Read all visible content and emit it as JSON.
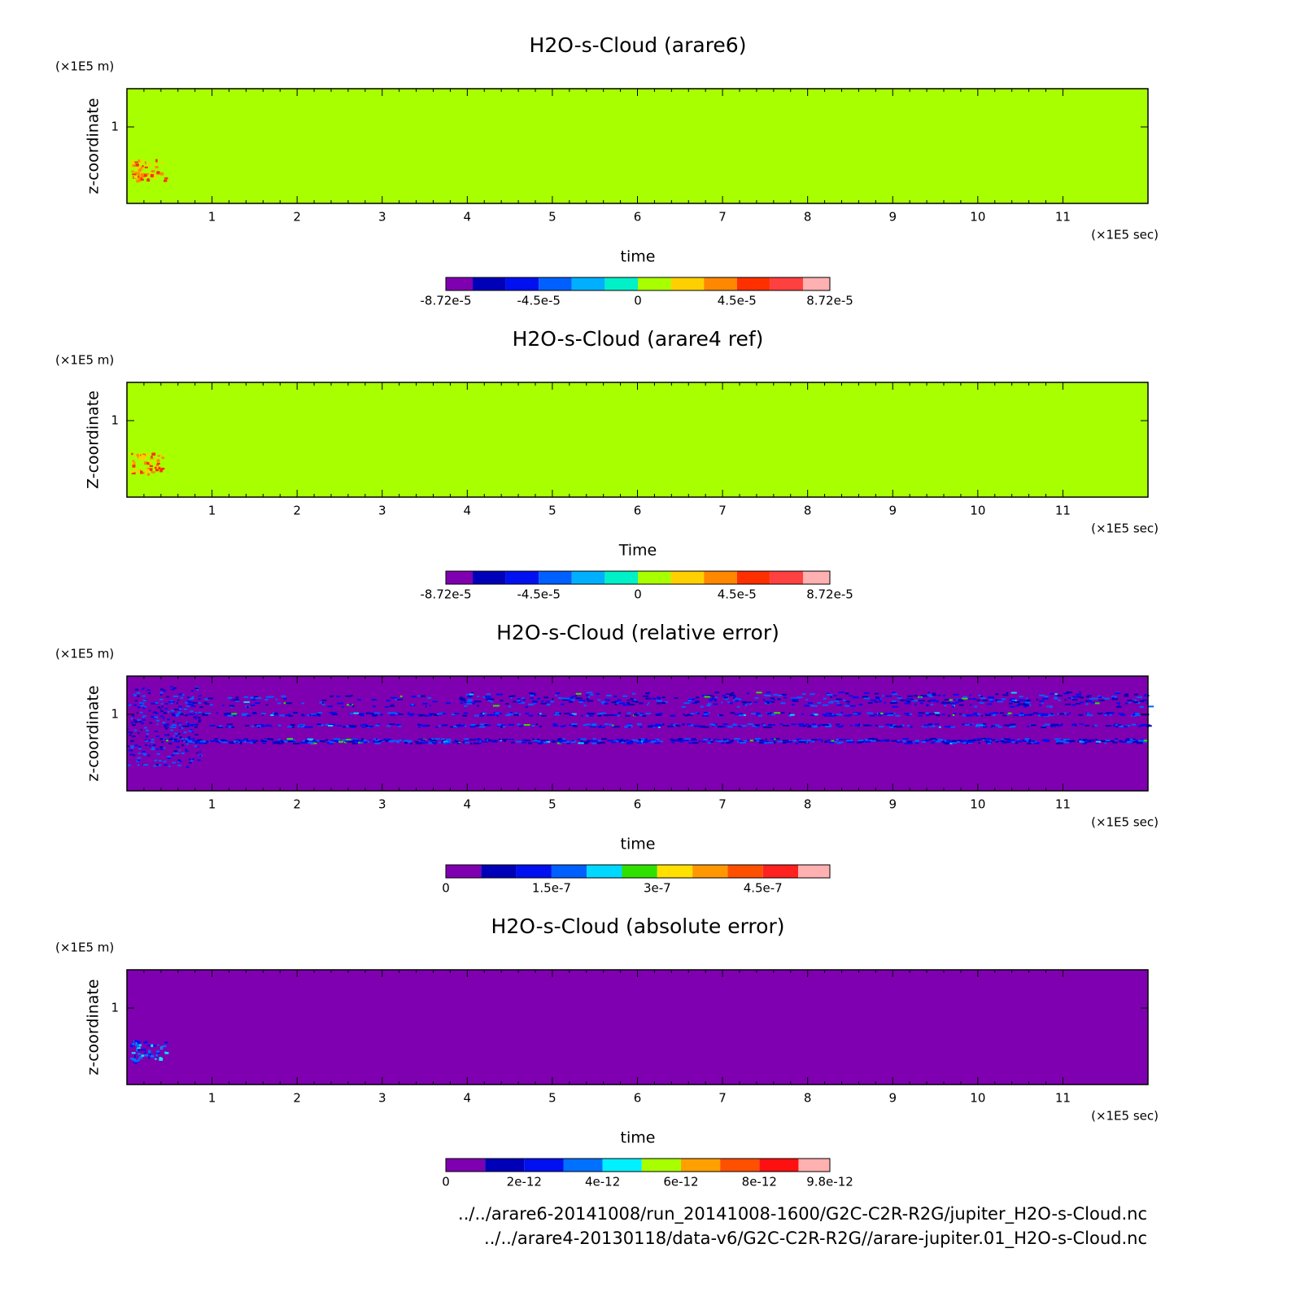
{
  "chart_data": [
    {
      "type": "heatmap",
      "title": "H2O-s-Cloud (arare6)",
      "xlabel": "time",
      "ylabel": "z-coordinate",
      "x_unit": "(×1E5 sec)",
      "y_unit": "(×1E5 m)",
      "xlim": [
        0,
        12
      ],
      "xticks": [
        1,
        2,
        3,
        4,
        5,
        6,
        7,
        8,
        9,
        10,
        11
      ],
      "ylim": [
        0,
        1.5
      ],
      "yticks": [
        1
      ],
      "field_color": "#a8ff00",
      "texture": "spot",
      "colorbar": {
        "lim": [
          -8.72e-05,
          8.72e-05
        ],
        "levels": [
          -7.5e-05,
          -6e-05,
          -4.5e-05,
          -3e-05,
          -1.5e-05,
          0,
          1.5e-05,
          3e-05,
          4.5e-05,
          6e-05,
          7.5e-05
        ],
        "colors": [
          "#7f00b0",
          "#0000b8",
          "#0010f0",
          "#0060ff",
          "#00b0ff",
          "#00f0c8",
          "#a8ff00",
          "#ffd000",
          "#ff8800",
          "#ff3000",
          "#ff4040",
          "#ffb0b0"
        ],
        "ticks": [
          {
            "value": -8.72e-05,
            "label": "-8.72e-5"
          },
          {
            "value": -4.5e-05,
            "label": "-4.5e-5"
          },
          0,
          {
            "value": 4.5e-05,
            "label": "4.5e-5"
          },
          {
            "value": 8.72e-05,
            "label": "8.72e-5"
          }
        ]
      }
    },
    {
      "type": "heatmap",
      "title": "H2O-s-Cloud (arare4 ref)",
      "xlabel": "Time",
      "ylabel": "Z-coordinate",
      "x_unit": "(×1E5 sec)",
      "y_unit": "(×1E5 m)",
      "xlim": [
        0,
        12
      ],
      "xticks": [
        1,
        2,
        3,
        4,
        5,
        6,
        7,
        8,
        9,
        10,
        11
      ],
      "ylim": [
        0,
        1.5
      ],
      "yticks": [
        1
      ],
      "field_color": "#a8ff00",
      "texture": "spot",
      "colorbar": {
        "lim": [
          -8.72e-05,
          8.72e-05
        ],
        "levels": [
          -7.5e-05,
          -6e-05,
          -4.5e-05,
          -3e-05,
          -1.5e-05,
          0,
          1.5e-05,
          3e-05,
          4.5e-05,
          6e-05,
          7.5e-05
        ],
        "colors": [
          "#7f00b0",
          "#0000b8",
          "#0010f0",
          "#0060ff",
          "#00b0ff",
          "#00f0c8",
          "#a8ff00",
          "#ffd000",
          "#ff8800",
          "#ff3000",
          "#ff4040",
          "#ffb0b0"
        ],
        "ticks": [
          {
            "value": -8.72e-05,
            "label": "-8.72e-5"
          },
          {
            "value": -4.5e-05,
            "label": "-4.5e-5"
          },
          0,
          {
            "value": 4.5e-05,
            "label": "4.5e-5"
          },
          {
            "value": 8.72e-05,
            "label": "8.72e-5"
          }
        ]
      }
    },
    {
      "type": "heatmap",
      "title": "H2O-s-Cloud (relative error)",
      "xlabel": "time",
      "ylabel": "z-coordinate",
      "x_unit": "(×1E5 sec)",
      "y_unit": "(×1E5 m)",
      "xlim": [
        0,
        12
      ],
      "xticks": [
        1,
        2,
        3,
        4,
        5,
        6,
        7,
        8,
        9,
        10,
        11
      ],
      "ylim": [
        0,
        1.5
      ],
      "yticks": [
        1
      ],
      "field_color": "#7f00b0",
      "texture": "streaks",
      "colorbar": {
        "lim": [
          0,
          5.45e-07
        ],
        "levels": [
          5e-08,
          1e-07,
          1.5e-07,
          2e-07,
          2.5e-07,
          3e-07,
          3.5e-07,
          4e-07,
          4.5e-07,
          5e-07
        ],
        "colors": [
          "#7f00b0",
          "#0000b8",
          "#0010f0",
          "#0060ff",
          "#00d8ff",
          "#30e000",
          "#ffe000",
          "#ff9800",
          "#ff5000",
          "#ff2020",
          "#ffb0b0"
        ],
        "ticks": [
          0,
          {
            "value": 1.5e-07,
            "label": "1.5e-7"
          },
          {
            "value": 3e-07,
            "label": "3e-7"
          },
          {
            "value": 4.5e-07,
            "label": "4.5e-7"
          }
        ]
      }
    },
    {
      "type": "heatmap",
      "title": "H2O-s-Cloud (absolute error)",
      "xlabel": "time",
      "ylabel": "z-coordinate",
      "x_unit": "(×1E5 sec)",
      "y_unit": "(×1E5 m)",
      "xlim": [
        0,
        12
      ],
      "xticks": [
        1,
        2,
        3,
        4,
        5,
        6,
        7,
        8,
        9,
        10,
        11
      ],
      "ylim": [
        0,
        1.5
      ],
      "yticks": [
        1
      ],
      "field_color": "#7f00b0",
      "texture": "spot",
      "colorbar": {
        "lim": [
          0,
          9.8e-12
        ],
        "levels": [
          1e-12,
          2e-12,
          3e-12,
          4e-12,
          5e-12,
          6e-12,
          7e-12,
          8e-12,
          9e-12
        ],
        "colors": [
          "#7f00b0",
          "#0000b8",
          "#0010f0",
          "#0070ff",
          "#00f0ff",
          "#a8ff00",
          "#ffa000",
          "#ff5000",
          "#ff1010",
          "#ffb0b0"
        ],
        "ticks": [
          0,
          {
            "value": 2e-12,
            "label": "2e-12"
          },
          {
            "value": 4e-12,
            "label": "4e-12"
          },
          {
            "value": 6e-12,
            "label": "6e-12"
          },
          {
            "value": 8e-12,
            "label": "8e-12"
          },
          {
            "value": 9.8e-12,
            "label": "9.8e-12"
          }
        ]
      }
    }
  ],
  "footer": [
    "../../arare6-20141008/run_20141008-1600/G2C-C2R-R2G/jupiter_H2O-s-Cloud.nc",
    "../../arare4-20130118/data-v6/G2C-C2R-R2G//arare-jupiter.01_H2O-s-Cloud.nc"
  ]
}
